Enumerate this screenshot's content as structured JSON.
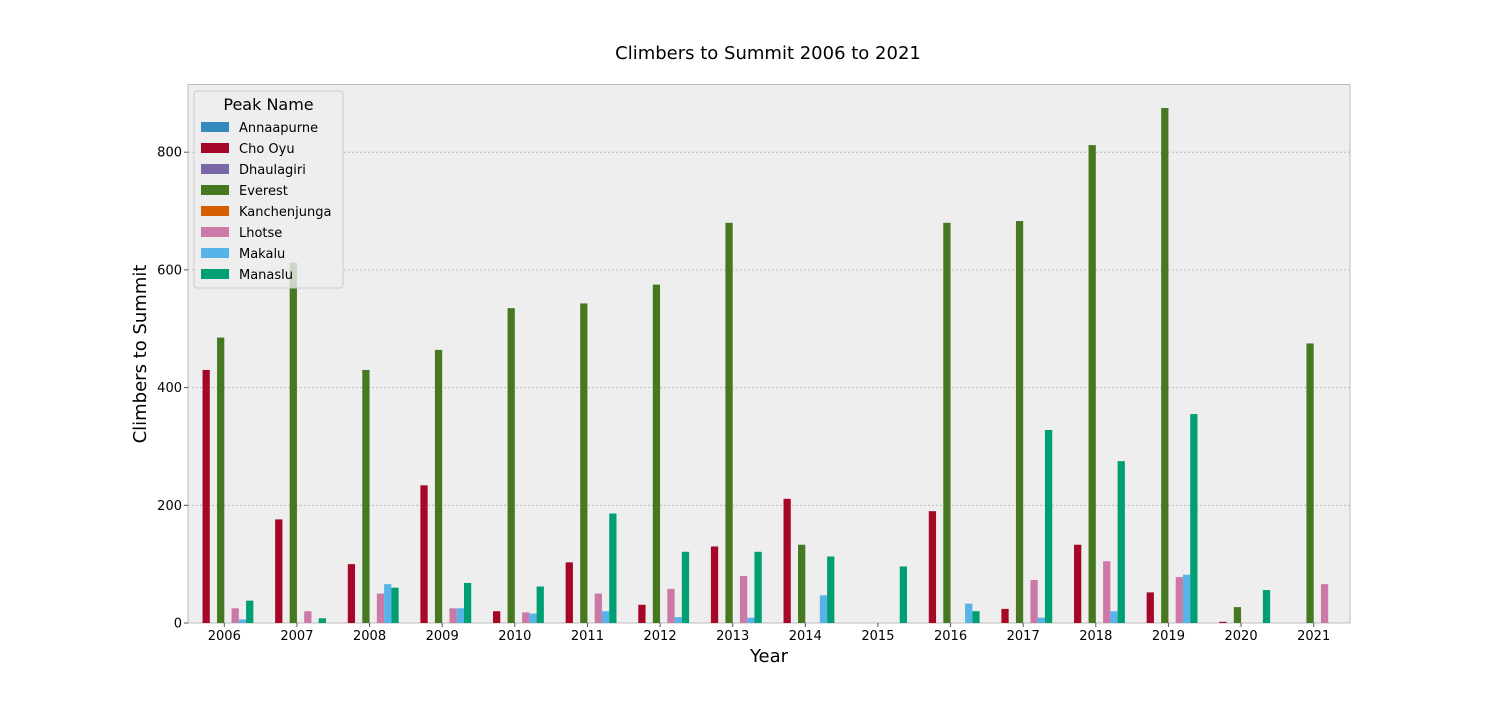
{
  "chart_data": {
    "type": "bar",
    "title": "Climbers to Summit 2006 to 2021",
    "xlabel": "Year",
    "ylabel": "Climbers to Summit",
    "ylim": [
      0,
      915
    ],
    "yticks": [
      0,
      200,
      400,
      600,
      800
    ],
    "grid": "y",
    "legend_title": "Peak Name",
    "legend_placement": "top-left",
    "categories": [
      "2006",
      "2007",
      "2008",
      "2009",
      "2010",
      "2011",
      "2012",
      "2013",
      "2014",
      "2015",
      "2016",
      "2017",
      "2018",
      "2019",
      "2020",
      "2021"
    ],
    "series": [
      {
        "name": "Annaapurne",
        "color": "#348ABD",
        "values": [
          0,
          0,
          0,
          0,
          0,
          0,
          0,
          0,
          0,
          0,
          0,
          0,
          0,
          0,
          0,
          0
        ]
      },
      {
        "name": "Cho Oyu",
        "color": "#A60628",
        "values": [
          430,
          176,
          100,
          234,
          20,
          103,
          31,
          130,
          211,
          0,
          190,
          24,
          133,
          52,
          2,
          0
        ]
      },
      {
        "name": "Dhaulagiri",
        "color": "#7A68A6",
        "values": [
          0,
          0,
          0,
          0,
          0,
          0,
          0,
          0,
          0,
          0,
          0,
          0,
          0,
          0,
          0,
          0
        ]
      },
      {
        "name": "Everest",
        "color": "#467821",
        "values": [
          485,
          612,
          430,
          464,
          535,
          543,
          575,
          680,
          133,
          0,
          680,
          683,
          812,
          875,
          27,
          475
        ]
      },
      {
        "name": "Kanchenjunga",
        "color": "#D55E00",
        "values": [
          0,
          0,
          0,
          0,
          0,
          0,
          0,
          0,
          0,
          0,
          0,
          0,
          0,
          0,
          0,
          0
        ]
      },
      {
        "name": "Lhotse",
        "color": "#CC79A7",
        "values": [
          25,
          20,
          50,
          25,
          18,
          50,
          58,
          80,
          0,
          0,
          0,
          73,
          105,
          78,
          0,
          66
        ]
      },
      {
        "name": "Makalu",
        "color": "#56B4E9",
        "values": [
          6,
          0,
          66,
          25,
          16,
          20,
          10,
          9,
          47,
          0,
          33,
          9,
          20,
          82,
          0,
          0
        ]
      },
      {
        "name": "Manaslu",
        "color": "#009E73",
        "values": [
          38,
          8,
          60,
          68,
          62,
          186,
          121,
          121,
          113,
          96,
          20,
          328,
          275,
          355,
          56,
          0
        ]
      }
    ]
  }
}
